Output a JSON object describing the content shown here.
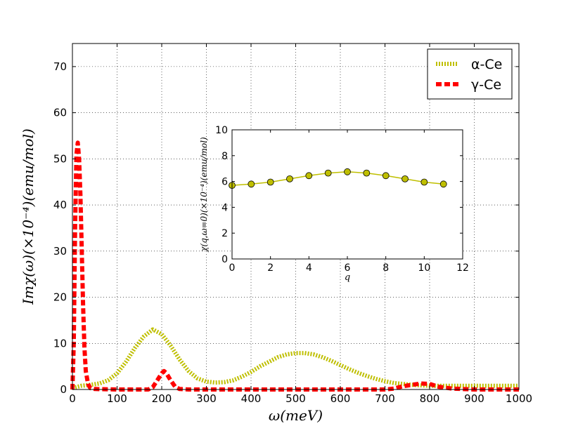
{
  "chart_data": [
    {
      "type": "line",
      "id": "main",
      "xlabel": "ω(meV)",
      "ylabel": "Imχ(ω)(×10⁻⁴)(emu/mol)",
      "xlim": [
        0,
        1000
      ],
      "ylim": [
        0,
        75
      ],
      "xticks": [
        0,
        100,
        200,
        300,
        400,
        500,
        600,
        700,
        800,
        900,
        1000
      ],
      "yticks": [
        0,
        10,
        20,
        30,
        40,
        50,
        60,
        70
      ],
      "grid": true,
      "legend": "top-right",
      "series": [
        {
          "name": "α-Ce",
          "color": "#bfbf00",
          "style": "dotted",
          "x": [
            0,
            20,
            40,
            60,
            80,
            100,
            120,
            140,
            160,
            180,
            200,
            220,
            240,
            260,
            280,
            300,
            320,
            340,
            360,
            380,
            400,
            420,
            440,
            460,
            480,
            500,
            520,
            540,
            560,
            580,
            600,
            620,
            640,
            660,
            680,
            700,
            720,
            740,
            760,
            780,
            800,
            850,
            900,
            950,
            1000
          ],
          "y": [
            0.3,
            0.8,
            1.0,
            1.3,
            2.0,
            3.5,
            6.0,
            9.0,
            11.5,
            13.0,
            12.0,
            9.5,
            6.5,
            4.0,
            2.4,
            1.7,
            1.5,
            1.6,
            2.0,
            2.8,
            3.8,
            5.0,
            6.0,
            7.0,
            7.6,
            7.9,
            7.9,
            7.6,
            7.0,
            6.2,
            5.3,
            4.4,
            3.6,
            2.9,
            2.3,
            1.8,
            1.4,
            1.2,
            1.0,
            0.9,
            0.8,
            0.8,
            0.8,
            0.8,
            0.8
          ]
        },
        {
          "name": "γ-Ce",
          "color": "#ff0000",
          "style": "dashed",
          "x": [
            0,
            3,
            6,
            9,
            12,
            15,
            18,
            21,
            24,
            27,
            30,
            35,
            40,
            50,
            100,
            150,
            170,
            180,
            190,
            200,
            205,
            210,
            220,
            230,
            240,
            260,
            300,
            400,
            500,
            600,
            700,
            720,
            740,
            760,
            780,
            800,
            820,
            850,
            900,
            1000
          ],
          "y": [
            0,
            10,
            35,
            51,
            53.5,
            50,
            42,
            30,
            18,
            9,
            4,
            1.2,
            0.3,
            0.1,
            0,
            0,
            0,
            0.5,
            2.0,
            3.5,
            4.0,
            3.6,
            2.0,
            0.6,
            0.1,
            0,
            0,
            0,
            0,
            0,
            0,
            0.2,
            0.7,
            1.0,
            1.3,
            1.2,
            0.6,
            0.2,
            0,
            0
          ]
        }
      ]
    },
    {
      "type": "line",
      "id": "inset",
      "xlabel": "q",
      "ylabel": "χ(q,ω=0)(×10⁻⁴)(emu/mol)",
      "xlim": [
        0,
        12
      ],
      "ylim": [
        0,
        10
      ],
      "xticks": [
        0,
        2,
        4,
        6,
        8,
        10,
        12
      ],
      "yticks": [
        0,
        2,
        4,
        6,
        8,
        10
      ],
      "grid": false,
      "series": [
        {
          "name": "",
          "color": "#bfbf00",
          "marker": "circle",
          "x": [
            0,
            1,
            2,
            3,
            4,
            5,
            6,
            7,
            8,
            9,
            10,
            11
          ],
          "y": [
            5.7,
            5.8,
            5.95,
            6.2,
            6.45,
            6.65,
            6.75,
            6.65,
            6.45,
            6.2,
            5.95,
            5.8
          ]
        }
      ]
    }
  ]
}
